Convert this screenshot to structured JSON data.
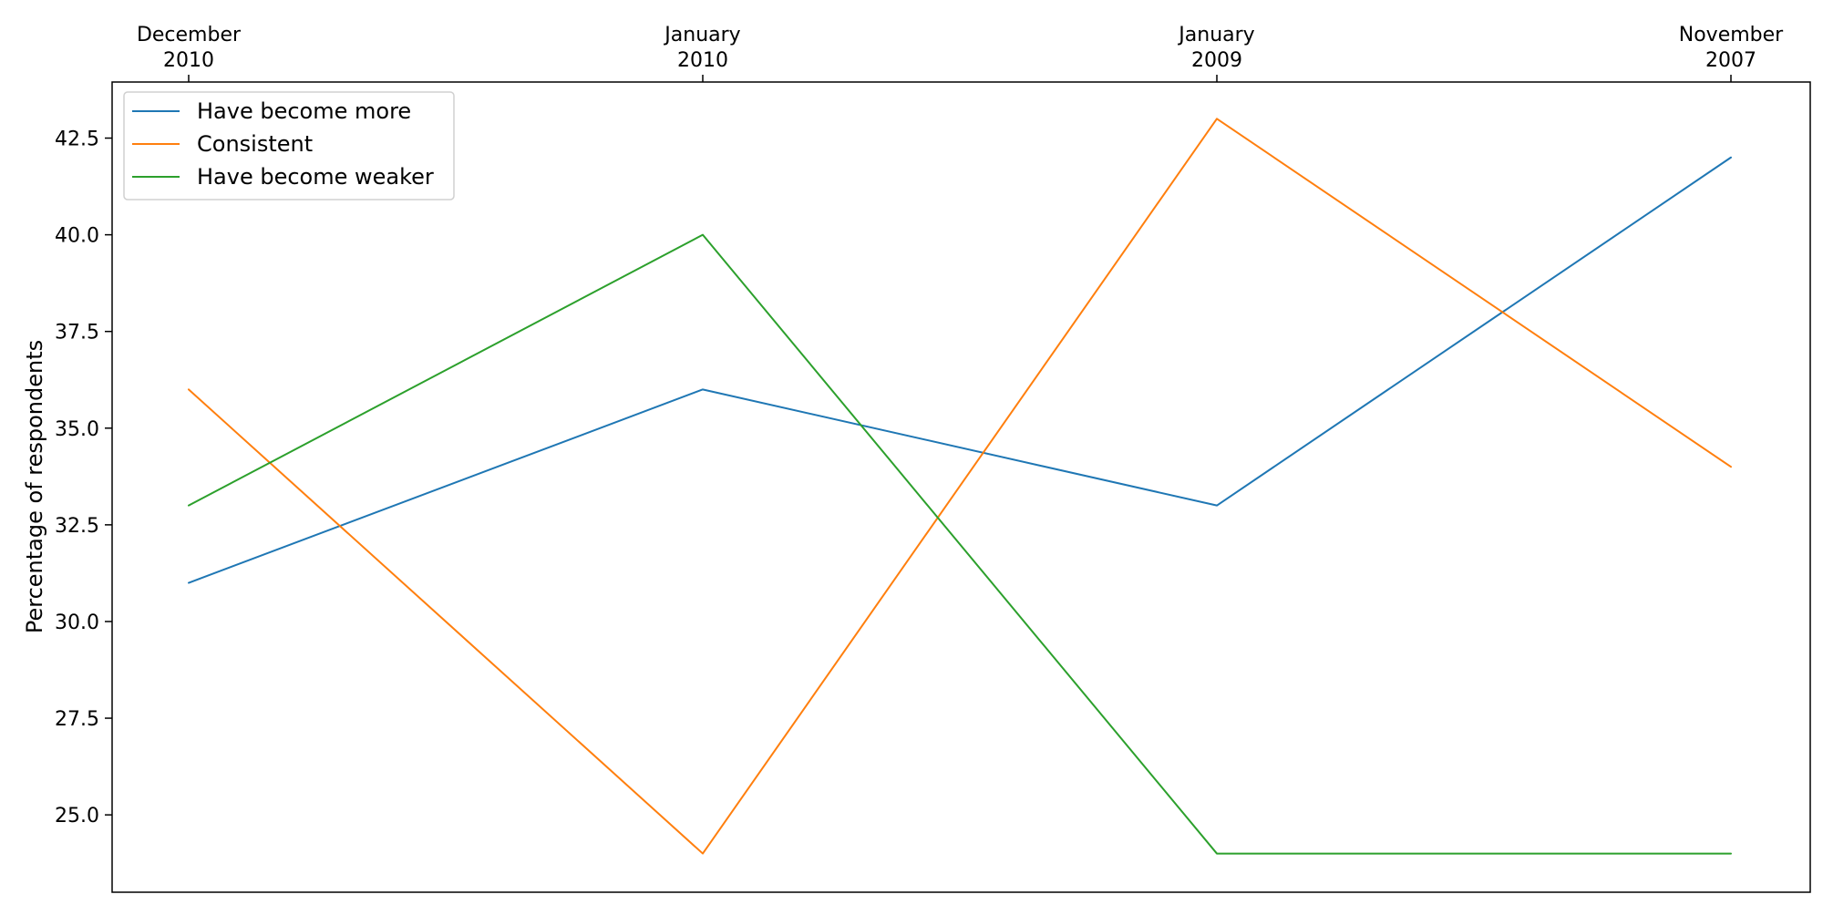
{
  "chart_data": {
    "type": "line",
    "categories": [
      [
        "December",
        "2010"
      ],
      [
        "January",
        "2010"
      ],
      [
        "January",
        "2009"
      ],
      [
        "November",
        "2007"
      ]
    ],
    "series": [
      {
        "name": "Have become more",
        "color": "#1f77b4",
        "values": [
          31,
          36,
          33,
          42
        ]
      },
      {
        "name": "Consistent",
        "color": "#ff7f0e",
        "values": [
          36,
          24,
          43,
          34
        ]
      },
      {
        "name": "Have become weaker",
        "color": "#2ca02c",
        "values": [
          33,
          40,
          24,
          24
        ]
      }
    ],
    "title": "",
    "xlabel": "",
    "ylabel": "Percentage of respondents",
    "ylim": [
      23,
      43.95
    ],
    "yticks": [
      "25.0",
      "27.5",
      "30.0",
      "32.5",
      "35.0",
      "37.5",
      "40.0",
      "42.5"
    ],
    "x_axis_position": "top",
    "grid": false,
    "legend_position": "upper-left"
  }
}
